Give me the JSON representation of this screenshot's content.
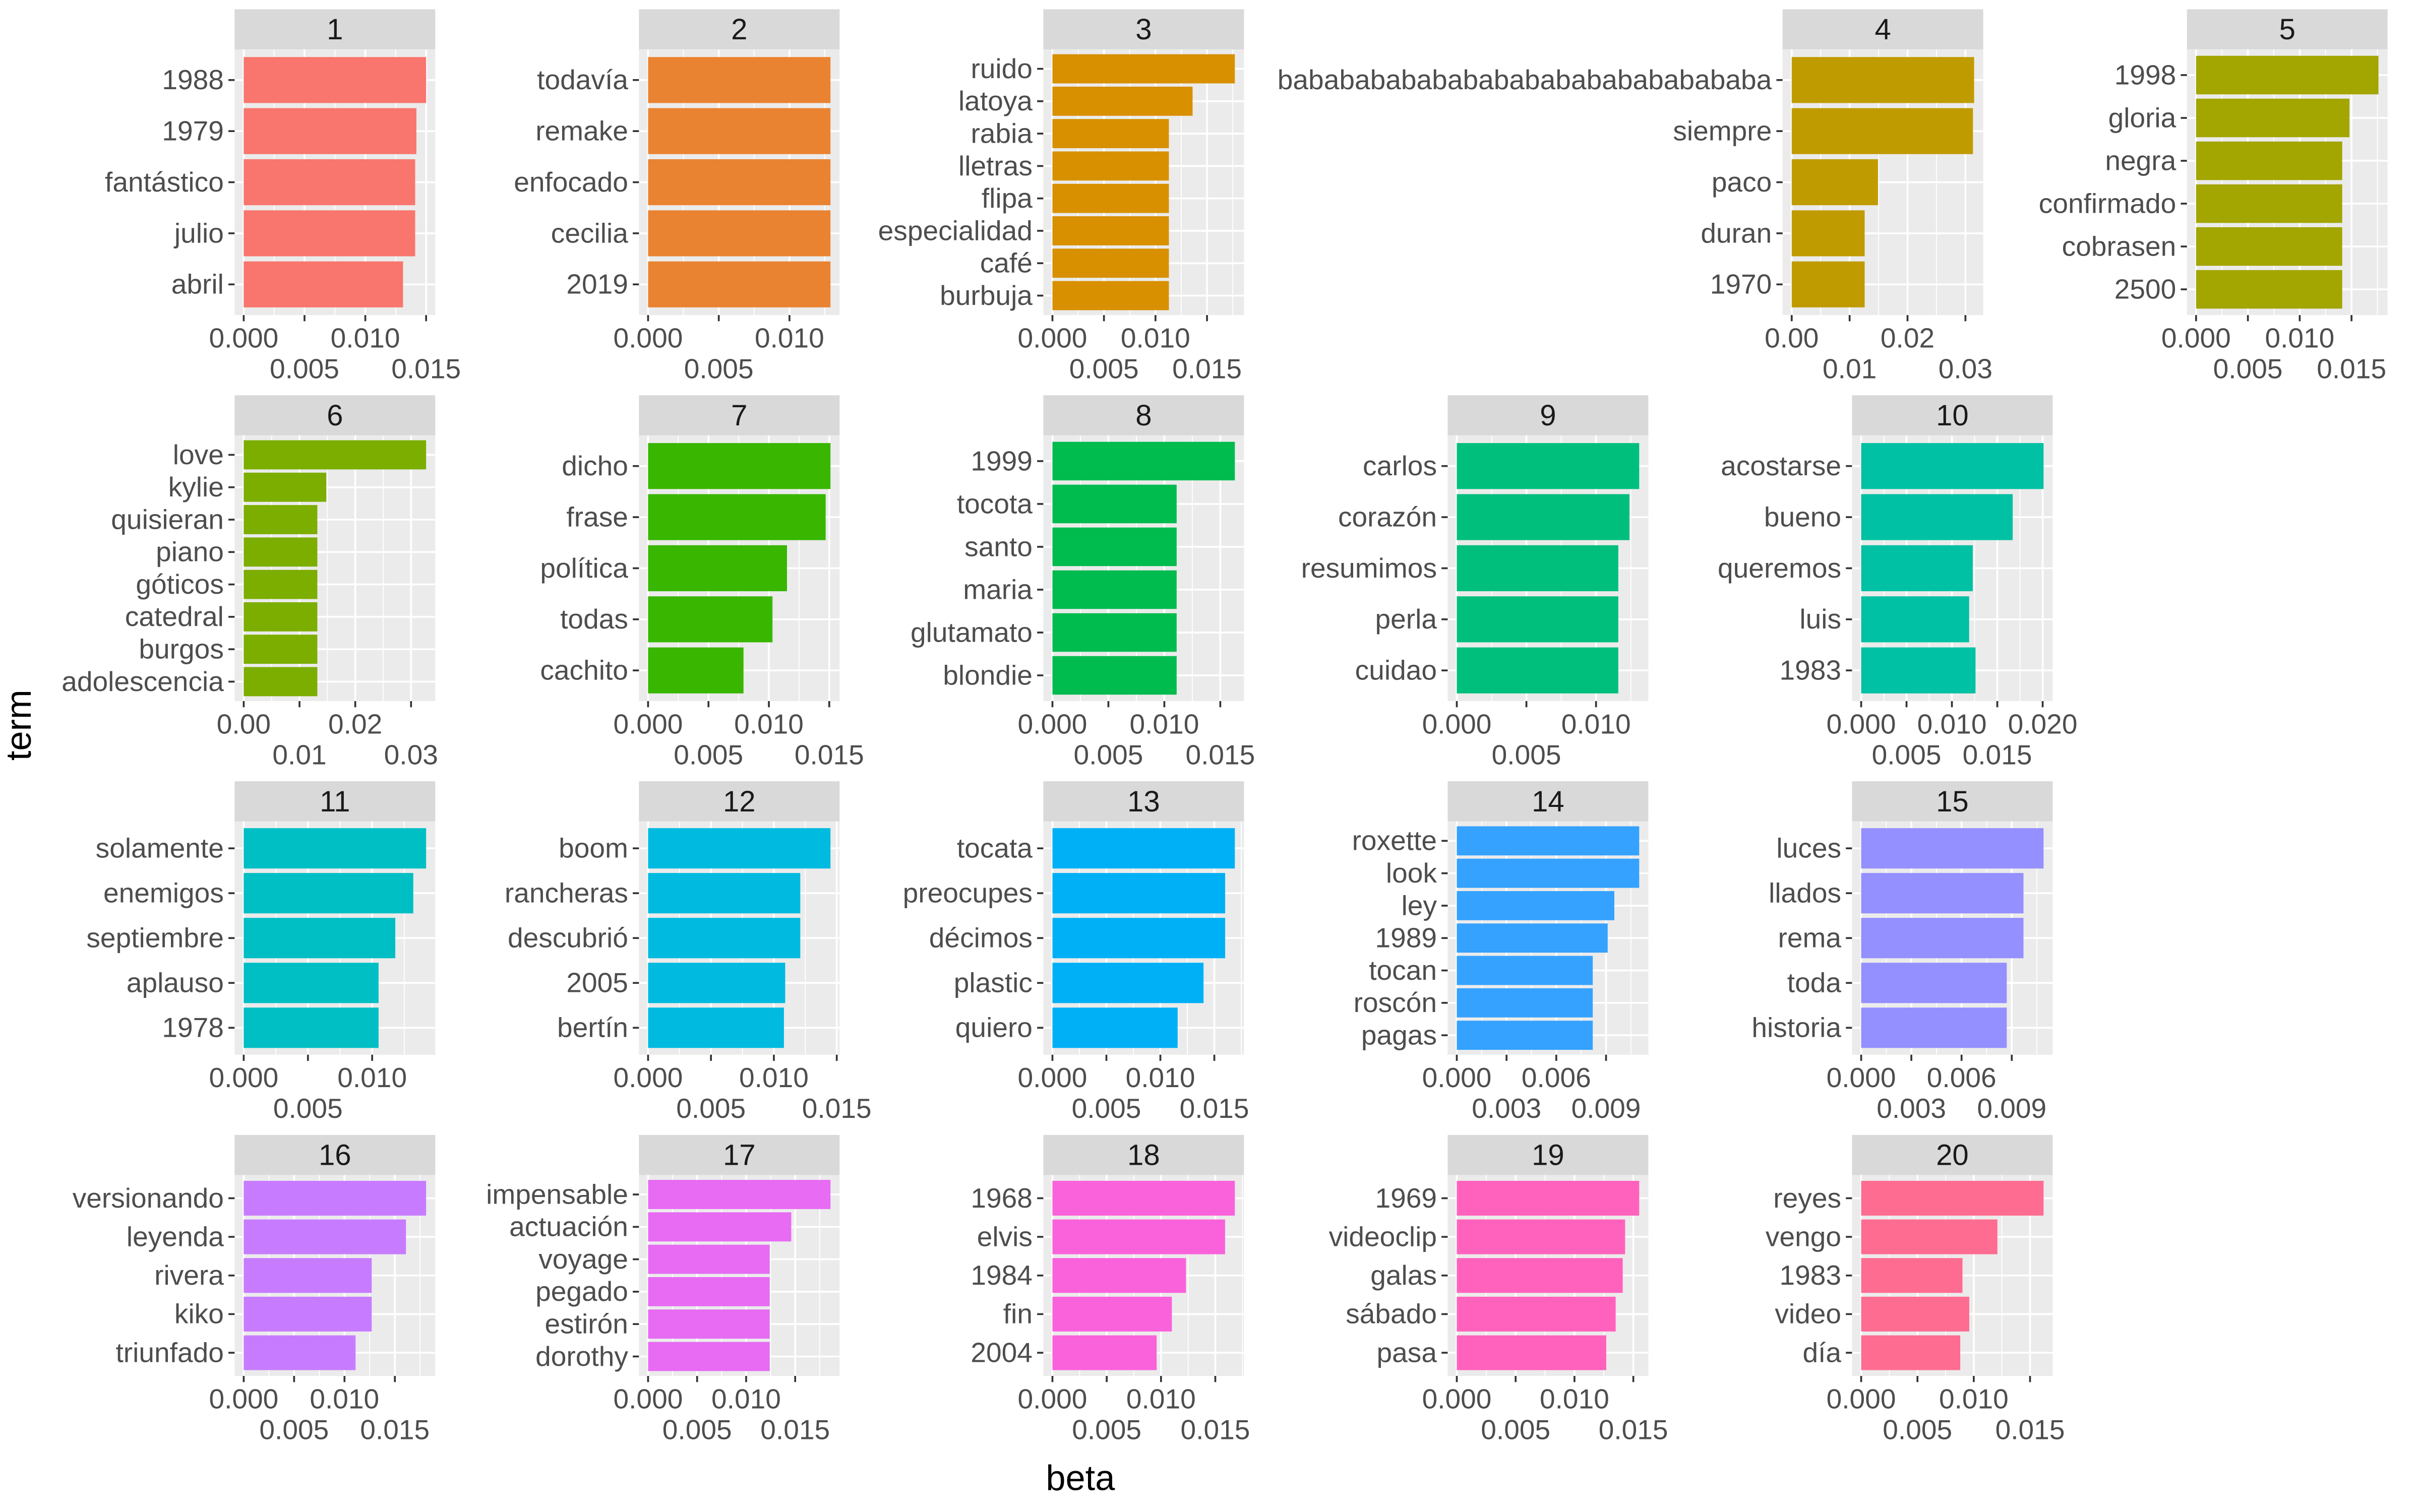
{
  "chart_data": {
    "type": "bar",
    "orientation": "horizontal",
    "facet": "wrap",
    "xlabel": "beta",
    "ylabel": "term",
    "grid": true,
    "legend": "none",
    "panels": [
      {
        "title": "1",
        "color": "#F8766D",
        "terms": [
          "1988",
          "1979",
          "fantástico",
          "julio",
          "abril"
        ],
        "values": [
          0.015,
          0.0142,
          0.0141,
          0.0141,
          0.0131
        ],
        "ticks": [
          0,
          0.005,
          0.01,
          0.015
        ],
        "tick_labels": [
          "0.000",
          "0.005",
          "0.010",
          "0.015"
        ]
      },
      {
        "title": "2",
        "color": "#EA8331",
        "terms": [
          "todavía",
          "remake",
          "enfocado",
          "cecilia",
          "2019"
        ],
        "values": [
          0.0129,
          0.0129,
          0.0129,
          0.0129,
          0.0129
        ],
        "ticks": [
          0,
          0.005,
          0.01
        ],
        "tick_labels": [
          "0.000",
          "0.005",
          "0.010"
        ]
      },
      {
        "title": "3",
        "color": "#D89000",
        "terms": [
          "ruido",
          "latoya",
          "rabia",
          "lletras",
          "flipa",
          "especialidad",
          "café",
          "burbuja"
        ],
        "values": [
          0.0177,
          0.0136,
          0.0113,
          0.0113,
          0.0113,
          0.0113,
          0.0113,
          0.0113
        ],
        "ticks": [
          0,
          0.005,
          0.01,
          0.015
        ],
        "tick_labels": [
          "0.000",
          "0.005",
          "0.010",
          "0.015"
        ]
      },
      {
        "title": "4",
        "color": "#C09B00",
        "terms": [
          "babababababababababababababababa",
          "siempre",
          "paco",
          "duran",
          "1970"
        ],
        "values": [
          0.0315,
          0.0313,
          0.0149,
          0.0126,
          0.0126
        ],
        "ticks": [
          0,
          0.01,
          0.02,
          0.03
        ],
        "tick_labels": [
          "0.00",
          "0.01",
          "0.02",
          "0.03"
        ]
      },
      {
        "title": "5",
        "color": "#A3A500",
        "terms": [
          "1998",
          "gloria",
          "negra",
          "confirmado",
          "cobrasen",
          "2500"
        ],
        "values": [
          0.0176,
          0.0148,
          0.0141,
          0.0141,
          0.0141,
          0.0141
        ],
        "ticks": [
          0,
          0.005,
          0.01,
          0.015
        ],
        "tick_labels": [
          "0.000",
          "0.005",
          "0.010",
          "0.015"
        ]
      },
      {
        "title": "6",
        "color": "#7CAE00",
        "terms": [
          "love",
          "kylie",
          "quisieran",
          "piano",
          "góticos",
          "catedral",
          "burgos",
          "adolescencia"
        ],
        "values": [
          0.0327,
          0.0148,
          0.0132,
          0.0132,
          0.0132,
          0.0132,
          0.0132,
          0.0132
        ],
        "ticks": [
          0,
          0.01,
          0.02,
          0.03
        ],
        "tick_labels": [
          "0.00",
          "0.01",
          "0.02",
          "0.03"
        ]
      },
      {
        "title": "7",
        "color": "#39B600",
        "terms": [
          "dicho",
          "frase",
          "política",
          "todas",
          "cachito"
        ],
        "values": [
          0.0151,
          0.0147,
          0.0115,
          0.0103,
          0.0079
        ],
        "ticks": [
          0,
          0.005,
          0.01,
          0.015
        ],
        "tick_labels": [
          "0.000",
          "0.005",
          "0.010",
          "0.015"
        ]
      },
      {
        "title": "8",
        "color": "#00BB4E",
        "terms": [
          "1999",
          "tocota",
          "santo",
          "maria",
          "glutamato",
          "blondie"
        ],
        "values": [
          0.0163,
          0.0111,
          0.0111,
          0.0111,
          0.0111,
          0.0111
        ],
        "ticks": [
          0,
          0.005,
          0.01,
          0.015
        ],
        "tick_labels": [
          "0.000",
          "0.005",
          "0.010",
          "0.015"
        ]
      },
      {
        "title": "9",
        "color": "#00BF7D",
        "terms": [
          "carlos",
          "corazón",
          "resumimos",
          "perla",
          "cuidao"
        ],
        "values": [
          0.0131,
          0.0124,
          0.0116,
          0.0116,
          0.0116
        ],
        "ticks": [
          0,
          0.005,
          0.01
        ],
        "tick_labels": [
          "0.000",
          "0.005",
          "0.010"
        ]
      },
      {
        "title": "10",
        "color": "#00C1A3",
        "terms": [
          "acostarse",
          "bueno",
          "queremos",
          "luis",
          "1983"
        ],
        "values": [
          0.0201,
          0.0167,
          0.0123,
          0.0119,
          0.0126
        ],
        "ticks": [
          0,
          0.005,
          0.01,
          0.015,
          0.02
        ],
        "tick_labels": [
          "0.000",
          "0.005",
          "0.010",
          "0.015",
          "0.020"
        ]
      },
      {
        "title": "11",
        "color": "#00BFC4",
        "terms": [
          "solamente",
          "enemigos",
          "septiembre",
          "aplauso",
          "1978"
        ],
        "values": [
          0.0142,
          0.0132,
          0.0118,
          0.0105,
          0.0105
        ],
        "ticks": [
          0,
          0.005,
          0.01
        ],
        "tick_labels": [
          "0.000",
          "0.005",
          "0.010"
        ]
      },
      {
        "title": "12",
        "color": "#00BAE0",
        "terms": [
          "boom",
          "rancheras",
          "descubrió",
          "2005",
          "bertín"
        ],
        "values": [
          0.0145,
          0.0121,
          0.0121,
          0.0109,
          0.0108
        ],
        "ticks": [
          0,
          0.005,
          0.01,
          0.015
        ],
        "tick_labels": [
          "0.000",
          "0.005",
          "0.010",
          "0.015"
        ]
      },
      {
        "title": "13",
        "color": "#00B0F6",
        "terms": [
          "tocata",
          "preocupes",
          "décimos",
          "plastic",
          "quiero"
        ],
        "values": [
          0.0169,
          0.016,
          0.016,
          0.014,
          0.0116
        ],
        "ticks": [
          0,
          0.005,
          0.01,
          0.015
        ],
        "tick_labels": [
          "0.000",
          "0.005",
          "0.010",
          "0.015"
        ]
      },
      {
        "title": "14",
        "color": "#35A2FF",
        "terms": [
          "roxette",
          "look",
          "ley",
          "1989",
          "tocan",
          "roscón",
          "pagas"
        ],
        "values": [
          0.011,
          0.011,
          0.0095,
          0.0091,
          0.0082,
          0.0082,
          0.0082
        ],
        "ticks": [
          0,
          0.003,
          0.006,
          0.009
        ],
        "tick_labels": [
          "0.000",
          "0.003",
          "0.006",
          "0.009"
        ]
      },
      {
        "title": "15",
        "color": "#9590FF",
        "terms": [
          "luces",
          "llados",
          "rema",
          "toda",
          "historia"
        ],
        "values": [
          0.0109,
          0.0097,
          0.0097,
          0.0087,
          0.0087
        ],
        "ticks": [
          0,
          0.003,
          0.006,
          0.009
        ],
        "tick_labels": [
          "0.000",
          "0.003",
          "0.006",
          "0.009"
        ]
      },
      {
        "title": "16",
        "color": "#C77CFF",
        "terms": [
          "versionando",
          "leyenda",
          "rivera",
          "kiko",
          "triunfado"
        ],
        "values": [
          0.0181,
          0.0161,
          0.0127,
          0.0127,
          0.0111
        ],
        "ticks": [
          0,
          0.005,
          0.01,
          0.015
        ],
        "tick_labels": [
          "0.000",
          "0.005",
          "0.010",
          "0.015"
        ]
      },
      {
        "title": "17",
        "color": "#E76BF3",
        "terms": [
          "impensable",
          "actuación",
          "voyage",
          "pegado",
          "estirón",
          "dorothy"
        ],
        "values": [
          0.0186,
          0.0146,
          0.0124,
          0.0124,
          0.0124,
          0.0124
        ],
        "ticks": [
          0,
          0.005,
          0.01,
          0.015
        ],
        "tick_labels": [
          "0.000",
          "0.005",
          "0.010",
          "0.015"
        ]
      },
      {
        "title": "18",
        "color": "#FA62DB",
        "terms": [
          "1968",
          "elvis",
          "1984",
          "fin",
          "2004"
        ],
        "values": [
          0.0168,
          0.0159,
          0.0123,
          0.011,
          0.0096
        ],
        "ticks": [
          0,
          0.005,
          0.01,
          0.015
        ],
        "tick_labels": [
          "0.000",
          "0.005",
          "0.010",
          "0.015"
        ]
      },
      {
        "title": "19",
        "color": "#FF62BC",
        "terms": [
          "1969",
          "videoclip",
          "galas",
          "sábado",
          "pasa"
        ],
        "values": [
          0.0155,
          0.0143,
          0.0141,
          0.0135,
          0.0127
        ],
        "ticks": [
          0,
          0.005,
          0.01,
          0.015
        ],
        "tick_labels": [
          "0.000",
          "0.005",
          "0.010",
          "0.015"
        ]
      },
      {
        "title": "20",
        "color": "#FF6C91",
        "terms": [
          "reyes",
          "vengo",
          "1983",
          "video",
          "día"
        ],
        "values": [
          0.0162,
          0.0121,
          0.009,
          0.0096,
          0.0088
        ],
        "ticks": [
          0,
          0.005,
          0.01,
          0.015
        ],
        "tick_labels": [
          "0.000",
          "0.005",
          "0.010",
          "0.015"
        ]
      }
    ]
  }
}
